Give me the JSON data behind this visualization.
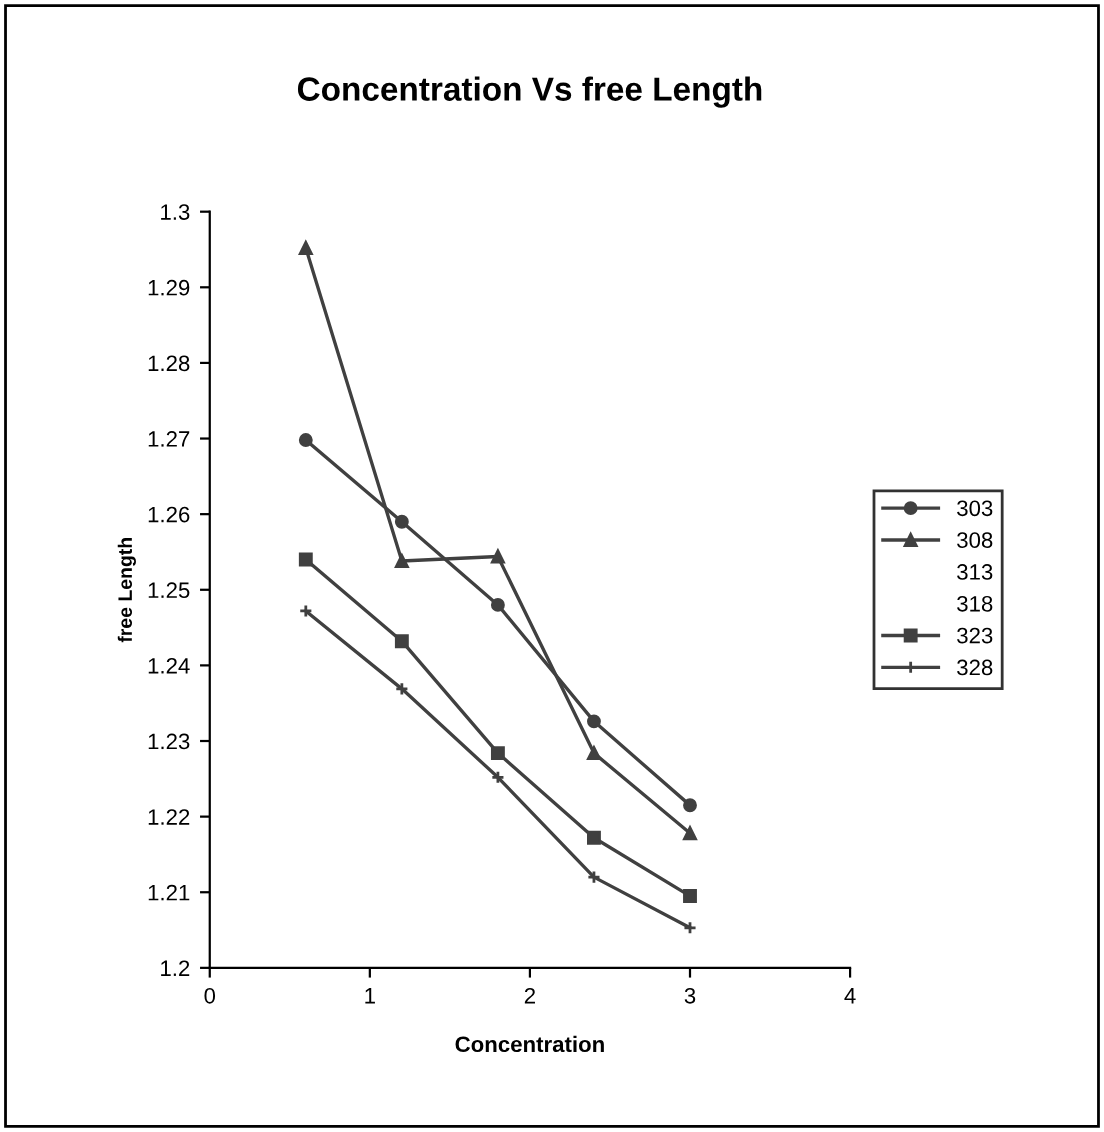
{
  "chart_data": {
    "type": "line",
    "title": "Concentration Vs free Length",
    "xlabel": "Concentration",
    "ylabel": "free Length",
    "x": [
      0.6,
      1.2,
      1.8,
      2.4,
      3.0
    ],
    "series": [
      {
        "name": "303",
        "color": "#404040",
        "marker": "circle",
        "values": [
          1.2698,
          1.259,
          1.248,
          1.2326,
          1.2215
        ]
      },
      {
        "name": "308",
        "color": "#404040",
        "marker": "triangle",
        "values": [
          1.2952,
          1.2538,
          1.2544,
          1.2284,
          1.2178
        ]
      },
      {
        "name": "313",
        "marker": "none",
        "values": [
          null,
          null,
          null,
          null,
          null
        ]
      },
      {
        "name": "318",
        "marker": "none",
        "values": [
          null,
          null,
          null,
          null,
          null
        ]
      },
      {
        "name": "323",
        "color": "#404040",
        "marker": "square",
        "values": [
          1.254,
          1.2432,
          1.2284,
          1.2172,
          1.2095
        ]
      },
      {
        "name": "328",
        "color": "#404040",
        "marker": "cross",
        "values": [
          1.2472,
          1.2369,
          1.2252,
          1.212,
          1.2053
        ]
      }
    ],
    "xlim": [
      0,
      4
    ],
    "xticks": [
      0,
      1,
      2,
      3,
      4
    ],
    "ylim": [
      1.2,
      1.3
    ],
    "yticks": [
      1.2,
      1.21,
      1.22,
      1.23,
      1.24,
      1.25,
      1.26,
      1.27,
      1.28,
      1.29,
      1.3
    ],
    "legend": "right",
    "grid": false
  }
}
